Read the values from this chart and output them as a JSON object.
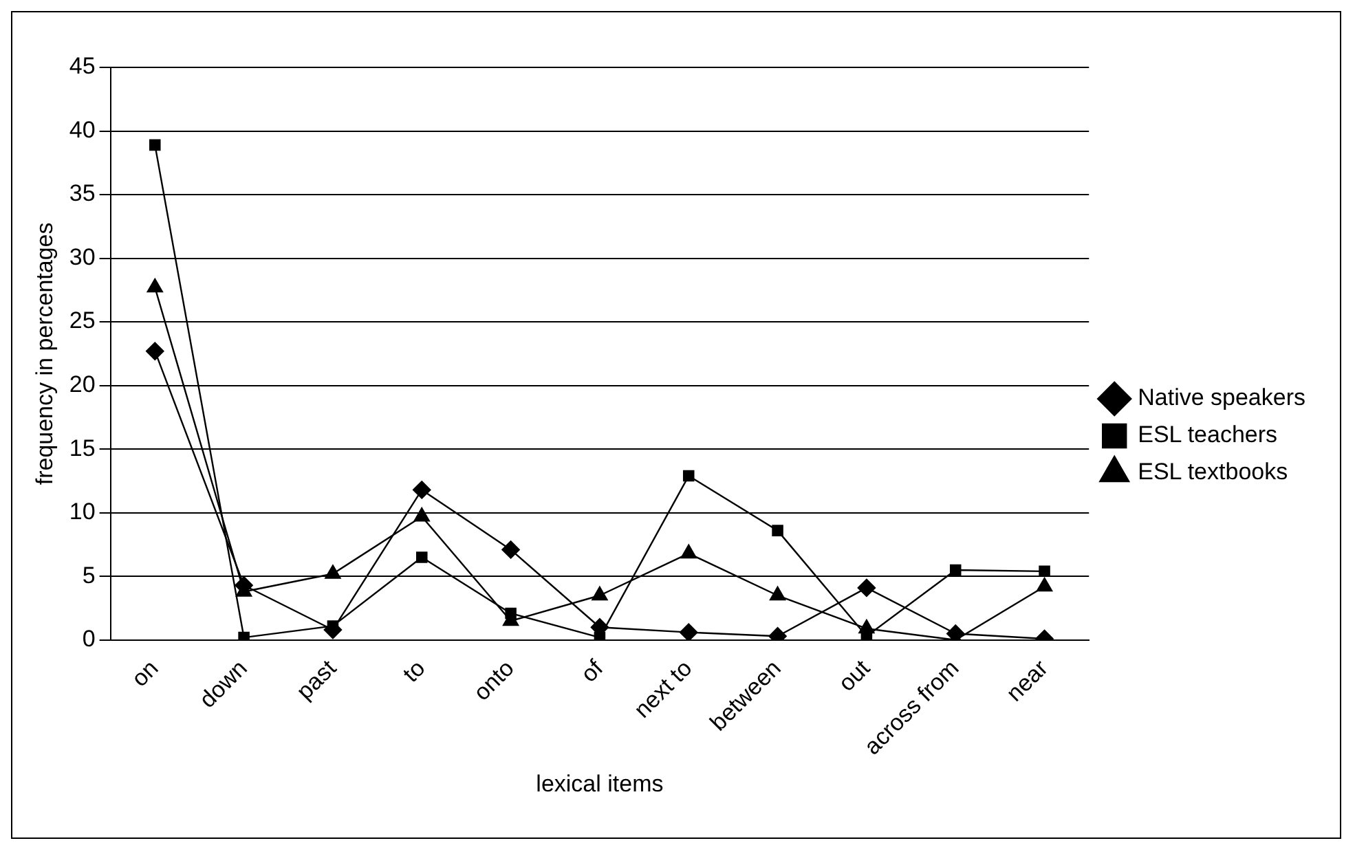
{
  "chart_data": {
    "type": "line",
    "xlabel": "lexical items",
    "ylabel": "frequency in percentages",
    "categories": [
      "on",
      "down",
      "past",
      "to",
      "onto",
      "of",
      "next to",
      "between",
      "out",
      "across from",
      "near"
    ],
    "series": [
      {
        "name": "Native speakers",
        "color": "#000000",
        "marker": "diamond",
        "values": [
          22.7,
          4.3,
          0.8,
          11.8,
          7.1,
          1.0,
          0.6,
          0.3,
          4.1,
          0.5,
          0.1
        ]
      },
      {
        "name": "ESL teachers",
        "color": "#000000",
        "marker": "square",
        "values": [
          38.9,
          0.2,
          1.1,
          6.5,
          2.1,
          0.2,
          12.9,
          8.6,
          0.3,
          5.5,
          5.4
        ]
      },
      {
        "name": "ESL textbooks",
        "color": "#000000",
        "marker": "triangle",
        "values": [
          27.7,
          3.8,
          5.2,
          9.7,
          1.5,
          3.5,
          6.8,
          3.5,
          0.9,
          0,
          4.2
        ]
      }
    ],
    "ylim": [
      0,
      45
    ],
    "yticks": [
      0,
      5,
      10,
      15,
      20,
      25,
      30,
      35,
      40,
      45
    ],
    "grid": "y",
    "legend": "right",
    "line_style": "solid"
  }
}
